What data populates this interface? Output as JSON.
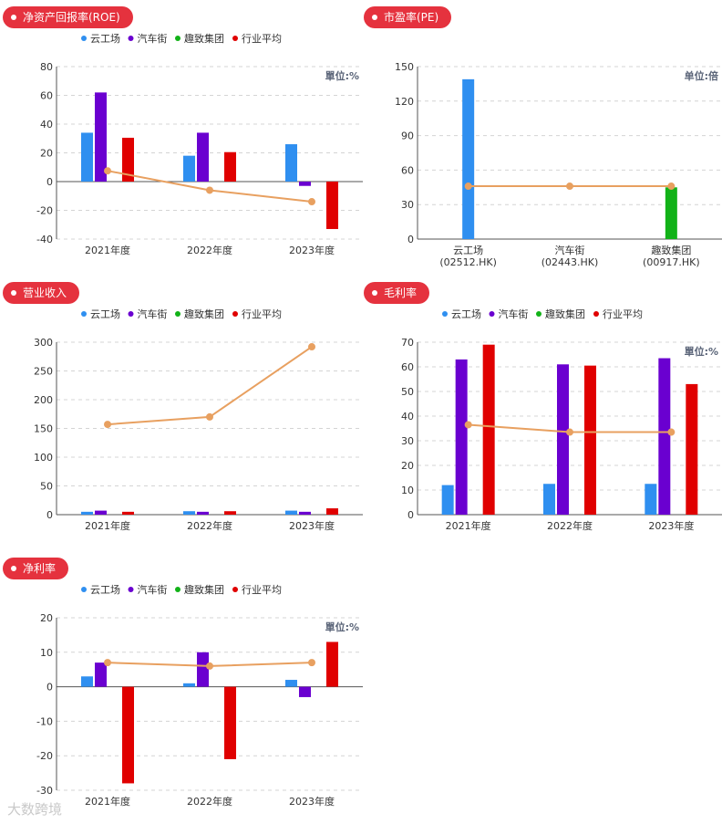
{
  "chart_data": [
    {
      "id": "roe",
      "type": "bar",
      "title": "净资产回报率(ROE)",
      "unit_label": "單位:%",
      "categories": [
        "2021年度",
        "2022年度",
        "2023年度"
      ],
      "series": [
        {
          "name": "云工场",
          "color": "#2f8ff0",
          "kind": "bar",
          "values": [
            34,
            18,
            26
          ]
        },
        {
          "name": "汽车街",
          "color": "#6a00d0",
          "kind": "bar",
          "values": [
            62,
            34,
            -3
          ]
        },
        {
          "name": "趣致集团",
          "color": "#12b218",
          "kind": "bar",
          "values": [
            null,
            null,
            null
          ]
        },
        {
          "name": "行业平均",
          "color": "#e00000",
          "kind": "bar",
          "values": [
            30.5,
            20.5,
            -33
          ]
        },
        {
          "name": "行业平均线",
          "color": "#e8a060",
          "kind": "line",
          "values": [
            7.5,
            -6,
            -14
          ]
        }
      ],
      "legend": [
        "云工场",
        "汽车街",
        "趣致集团",
        "行业平均"
      ],
      "ylim": [
        -40,
        80
      ],
      "yticks": [
        -40,
        -20,
        0,
        20,
        40,
        60,
        80
      ]
    },
    {
      "id": "pe",
      "type": "bar",
      "title": "市盈率(PE)",
      "unit_label": "单位:倍",
      "categories": [
        "云工场\n(02512.HK)",
        "汽车街\n(02443.HK)",
        "趣致集团\n(00917.HK)"
      ],
      "series": [
        {
          "name": "PE",
          "kind": "bar",
          "values": [
            139,
            0,
            45
          ],
          "colors": [
            "#2f8ff0",
            "#6a00d0",
            "#12b218"
          ]
        },
        {
          "name": "平均",
          "color": "#e8a060",
          "kind": "line",
          "values": [
            46,
            46,
            46
          ]
        }
      ],
      "legend": [],
      "ylim": [
        0,
        150
      ],
      "yticks": [
        0,
        30,
        60,
        90,
        120,
        150
      ]
    },
    {
      "id": "revenue",
      "type": "bar",
      "title": "营业收入",
      "unit_label": "",
      "categories": [
        "2021年度",
        "2022年度",
        "2023年度"
      ],
      "series": [
        {
          "name": "云工场",
          "color": "#2f8ff0",
          "kind": "bar",
          "values": [
            5,
            6,
            7
          ]
        },
        {
          "name": "汽车街",
          "color": "#6a00d0",
          "kind": "bar",
          "values": [
            7,
            5,
            5
          ]
        },
        {
          "name": "趣致集团",
          "color": "#12b218",
          "kind": "bar",
          "values": [
            null,
            null,
            null
          ]
        },
        {
          "name": "行业平均",
          "color": "#e00000",
          "kind": "bar",
          "values": [
            5,
            6,
            11
          ]
        },
        {
          "name": "行业平均线",
          "color": "#e8a060",
          "kind": "line",
          "values": [
            157,
            170,
            292
          ]
        }
      ],
      "legend": [
        "云工场",
        "汽车街",
        "趣致集团",
        "行业平均"
      ],
      "ylim": [
        0,
        300
      ],
      "yticks": [
        0,
        50,
        100,
        150,
        200,
        250,
        300
      ]
    },
    {
      "id": "gross",
      "type": "bar",
      "title": "毛利率",
      "unit_label": "單位:%",
      "categories": [
        "2021年度",
        "2022年度",
        "2023年度"
      ],
      "series": [
        {
          "name": "云工场",
          "color": "#2f8ff0",
          "kind": "bar",
          "values": [
            12,
            12.5,
            12.5
          ]
        },
        {
          "name": "汽车街",
          "color": "#6a00d0",
          "kind": "bar",
          "values": [
            63,
            61,
            63.5
          ]
        },
        {
          "name": "趣致集团",
          "color": "#12b218",
          "kind": "bar",
          "values": [
            null,
            null,
            null
          ]
        },
        {
          "name": "行业平均",
          "color": "#e00000",
          "kind": "bar",
          "values": [
            69,
            60.5,
            53
          ]
        },
        {
          "name": "行业平均线",
          "color": "#e8a060",
          "kind": "line",
          "values": [
            36.5,
            33.5,
            33.5
          ]
        }
      ],
      "legend": [
        "云工场",
        "汽车街",
        "趣致集团",
        "行业平均"
      ],
      "ylim": [
        0,
        70
      ],
      "yticks": [
        0,
        10,
        20,
        30,
        40,
        50,
        60,
        70
      ]
    },
    {
      "id": "net",
      "type": "bar",
      "title": "净利率",
      "unit_label": "單位:%",
      "categories": [
        "2021年度",
        "2022年度",
        "2023年度"
      ],
      "series": [
        {
          "name": "云工场",
          "color": "#2f8ff0",
          "kind": "bar",
          "values": [
            3,
            1,
            2
          ]
        },
        {
          "name": "汽车街",
          "color": "#6a00d0",
          "kind": "bar",
          "values": [
            7,
            10,
            -3
          ]
        },
        {
          "name": "趣致集团",
          "color": "#12b218",
          "kind": "bar",
          "values": [
            null,
            null,
            null
          ]
        },
        {
          "name": "行业平均",
          "color": "#e00000",
          "kind": "bar",
          "values": [
            -28,
            -21,
            13
          ]
        },
        {
          "name": "行业平均线",
          "color": "#e8a060",
          "kind": "line",
          "values": [
            7,
            6,
            7
          ]
        }
      ],
      "legend": [
        "云工场",
        "汽车街",
        "趣致集团",
        "行业平均"
      ],
      "ylim": [
        -30,
        20
      ],
      "yticks": [
        -30,
        -20,
        -10,
        0,
        10,
        20
      ]
    }
  ],
  "watermark": "大数跨境"
}
